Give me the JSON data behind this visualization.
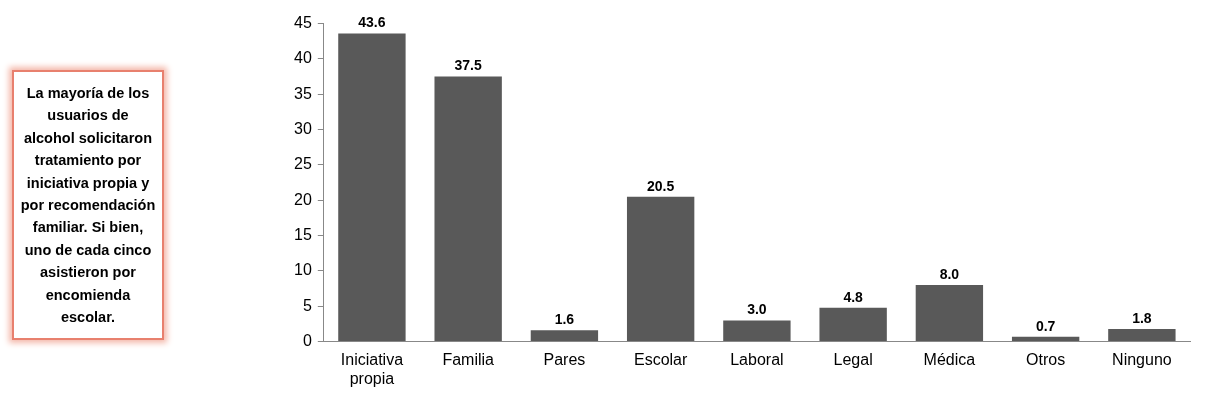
{
  "chart_data": {
    "type": "bar",
    "categories": [
      "Iniciativa propia",
      "Familia",
      "Pares",
      "Escolar",
      "Laboral",
      "Legal",
      "Médica",
      "Otros",
      "Ninguno"
    ],
    "values": [
      43.6,
      37.5,
      1.6,
      20.5,
      3.0,
      4.8,
      8.0,
      0.7,
      1.8
    ],
    "value_labels": [
      "43.6",
      "37.5",
      "1.6",
      "20.5",
      "3.0",
      "4.8",
      "8.0",
      "0.7",
      "1.8"
    ],
    "color": "#595959",
    "ylim": [
      0,
      45
    ],
    "yticks": [
      0,
      5,
      10,
      15,
      20,
      25,
      30,
      35,
      40,
      45
    ],
    "grid": false,
    "legend": false,
    "annotations": [
      "La mayoría de los usuarios de alcohol solicitaron tratamiento por iniciativa propia y por recomendación familiar. Si bien, uno de cada cinco asistieron por encomienda escolar."
    ]
  }
}
